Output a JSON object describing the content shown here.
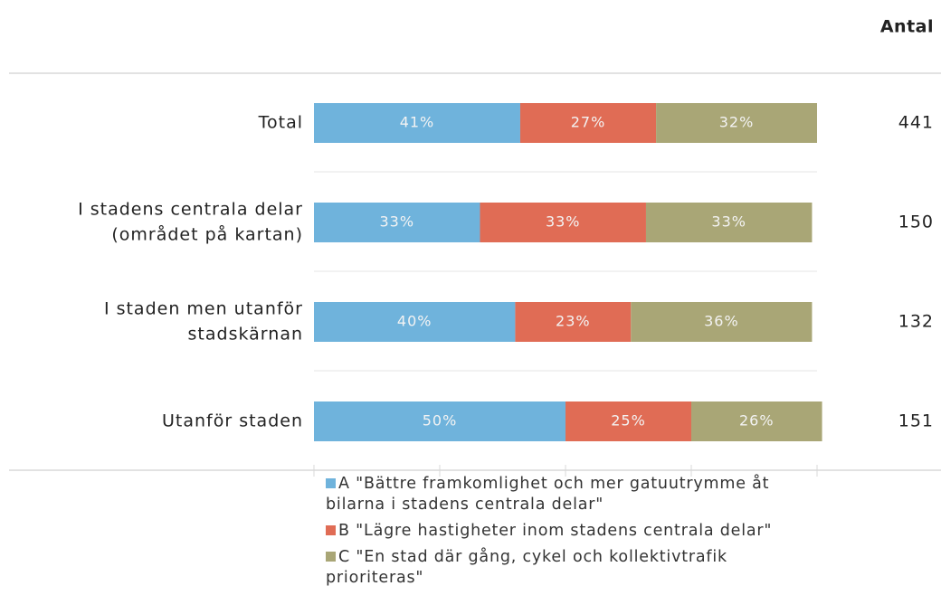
{
  "chart_data": {
    "type": "bar",
    "orientation": "horizontal",
    "stacked": true,
    "count_header": "Antal",
    "categories": [
      [
        "Total"
      ],
      [
        "I stadens centrala delar",
        "(området på kartan)"
      ],
      [
        "I staden men utanför",
        "stadskärnan"
      ],
      [
        "Utanför staden"
      ]
    ],
    "counts": [
      441,
      150,
      132,
      151
    ],
    "series": [
      {
        "name": "A \"Bättre framkomlighet och mer gatuutrymme åt bilarna i stadens centrala delar\"",
        "color": "#6fb3dc",
        "values": [
          41,
          33,
          40,
          50
        ],
        "value_labels": [
          "41%",
          "33%",
          "40%",
          "50%"
        ]
      },
      {
        "name": "B \"Lägre hastigheter inom stadens centrala delar\"",
        "color": "#e06c55",
        "values": [
          27,
          33,
          23,
          25
        ],
        "value_labels": [
          "27%",
          "33%",
          "23%",
          "25%"
        ]
      },
      {
        "name": "C \"En stad där gång, cykel och kollektivtrafik prioriteras\"",
        "color": "#a9a676",
        "values": [
          32,
          33,
          36,
          26
        ],
        "value_labels": [
          "32%",
          "33%",
          "36%",
          "26%"
        ]
      }
    ],
    "xlim": [
      0,
      100
    ],
    "xticks": [
      0,
      25,
      50,
      75,
      100
    ],
    "legend": "bottom"
  }
}
